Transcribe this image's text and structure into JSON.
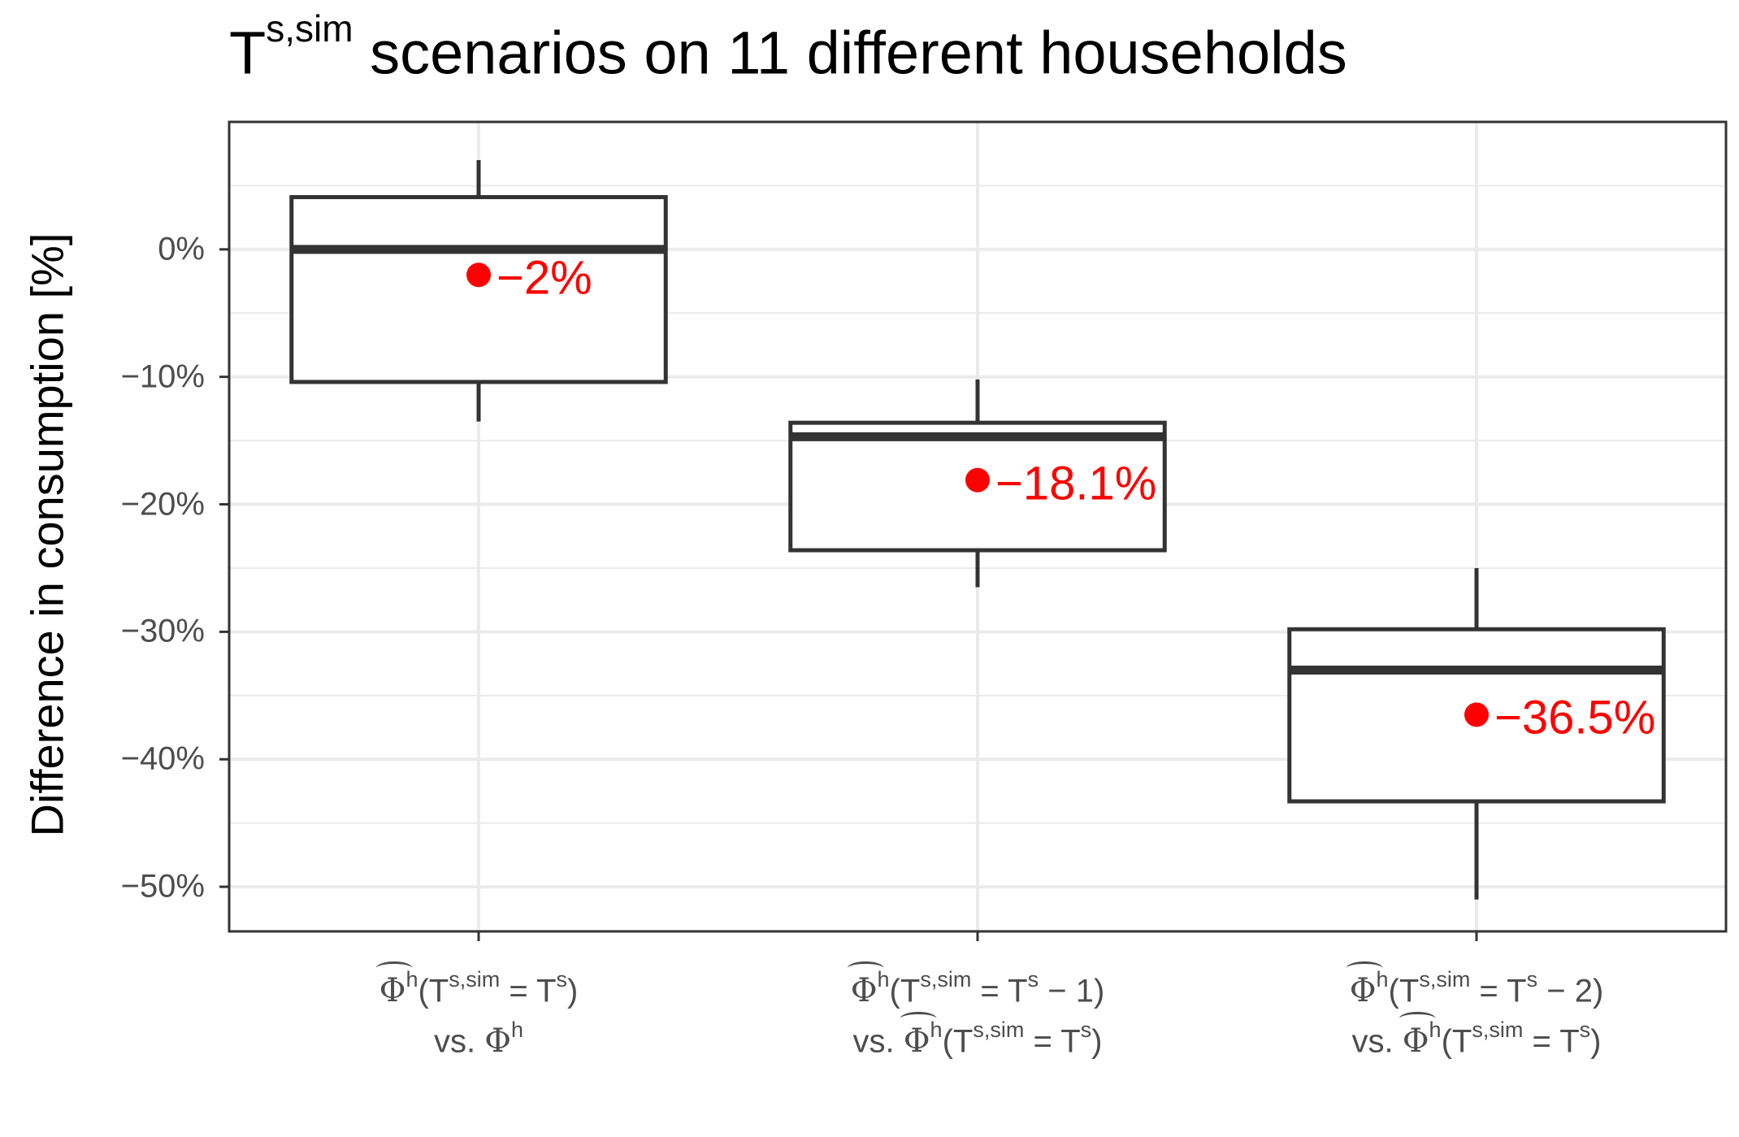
{
  "title": {
    "base": "T",
    "sup": "s,sim",
    "rest": " scenarios on 11 different households"
  },
  "chart_data": {
    "type": "box",
    "title": "Ts,sim scenarios on 11 different households",
    "ylabel": "Difference in consumption [%]",
    "ylim": [
      -53.5,
      10
    ],
    "yticks": [
      0,
      -10,
      -20,
      -30,
      -40,
      -50
    ],
    "ytick_labels": [
      "0%",
      "−10%",
      "−20%",
      "−30%",
      "−40%",
      "−50%"
    ],
    "grid": true,
    "mean_color": "#ff0000",
    "box_color": "#333333",
    "categories": [
      {
        "line1": {
          "phi": "Φ",
          "sup1": "h",
          "pre": "(T",
          "sup2": "s,sim",
          "mid": " = T",
          "sup3": "s",
          "post": ")"
        },
        "line2": {
          "vs": "vs. ",
          "phi": "Φ",
          "sup1": "h"
        }
      },
      {
        "line1": {
          "phi": "Φ",
          "sup1": "h",
          "pre": "(T",
          "sup2": "s,sim",
          "mid": " = T",
          "sup3": "s",
          "post": " − 1)"
        },
        "line2": {
          "vs": "vs. ",
          "phi": "Φ",
          "sup1": "h",
          "pre": "(T",
          "sup2": "s,sim",
          "mid": " = T",
          "sup3": "s",
          "post": ")"
        }
      },
      {
        "line1": {
          "phi": "Φ",
          "sup1": "h",
          "pre": "(T",
          "sup2": "s,sim",
          "mid": " = T",
          "sup3": "s",
          "post": " − 2)"
        },
        "line2": {
          "vs": "vs. ",
          "phi": "Φ",
          "sup1": "h",
          "pre": "(T",
          "sup2": "s,sim",
          "mid": " = T",
          "sup3": "s",
          "post": ")"
        }
      }
    ],
    "boxes": [
      {
        "whisker_low": -13.5,
        "q1": -10.4,
        "median": 0,
        "q3": 4.1,
        "whisker_high": 7,
        "mean": -2,
        "mean_label": "−2%"
      },
      {
        "whisker_low": -26.5,
        "q1": -23.6,
        "median": -14.7,
        "q3": -13.6,
        "whisker_high": -10.2,
        "mean": -18.1,
        "mean_label": "−18.1%"
      },
      {
        "whisker_low": -51,
        "q1": -43.3,
        "median": -33,
        "q3": -29.8,
        "whisker_high": -25,
        "mean": -36.5,
        "mean_label": "−36.5%"
      }
    ]
  }
}
